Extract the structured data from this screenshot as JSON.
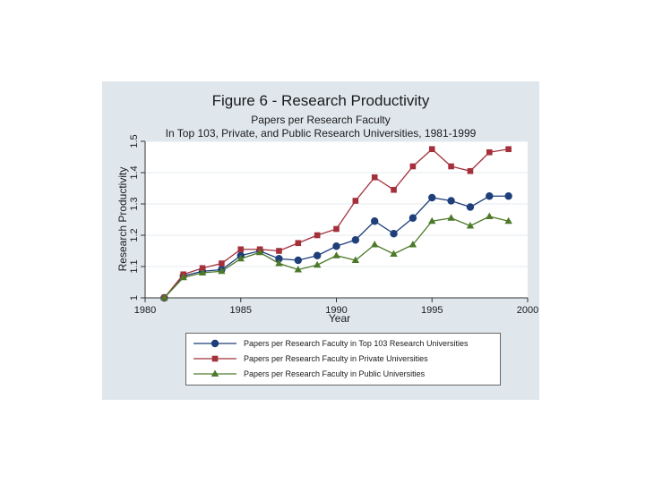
{
  "figure": {
    "title": "Figure 6 - Research Productivity",
    "subtitle1": "Papers per Research Faculty",
    "subtitle2": "In Top 103, Private, and Public Research Universities, 1981-1999"
  },
  "chart_data": {
    "type": "line",
    "xlabel": "Year",
    "ylabel": "Research Productivity",
    "xlim": [
      1980,
      2000
    ],
    "ylim": [
      1,
      1.5
    ],
    "xticks": [
      1980,
      1985,
      1990,
      1995,
      2000
    ],
    "yticks": [
      1,
      1.1,
      1.2,
      1.3,
      1.4,
      1.5
    ],
    "grid": true,
    "legend_position": "bottom",
    "x": [
      1981,
      1982,
      1983,
      1984,
      1985,
      1986,
      1987,
      1988,
      1989,
      1990,
      1991,
      1992,
      1993,
      1994,
      1995,
      1996,
      1997,
      1998,
      1999
    ],
    "series": [
      {
        "name": "Papers per Research Faculty in Top 103 Research Universities",
        "color": "#1f3f7a",
        "marker": "circle",
        "values": [
          1.0,
          1.07,
          1.085,
          1.09,
          1.135,
          1.15,
          1.125,
          1.12,
          1.135,
          1.165,
          1.185,
          1.245,
          1.205,
          1.255,
          1.32,
          1.31,
          1.29,
          1.325,
          1.325
        ]
      },
      {
        "name": "Papers per Research Faculty in Private Universities",
        "color": "#a3303a",
        "marker": "square",
        "values": [
          1.0,
          1.075,
          1.095,
          1.11,
          1.155,
          1.155,
          1.15,
          1.175,
          1.2,
          1.22,
          1.31,
          1.385,
          1.345,
          1.42,
          1.475,
          1.42,
          1.405,
          1.465,
          1.475
        ]
      },
      {
        "name": "Papers per Research Faculty in Public Universities",
        "color": "#4d7a2a",
        "marker": "triangle",
        "values": [
          1.0,
          1.065,
          1.08,
          1.085,
          1.125,
          1.145,
          1.11,
          1.09,
          1.105,
          1.135,
          1.12,
          1.17,
          1.14,
          1.17,
          1.245,
          1.255,
          1.23,
          1.26,
          1.245
        ]
      }
    ]
  }
}
